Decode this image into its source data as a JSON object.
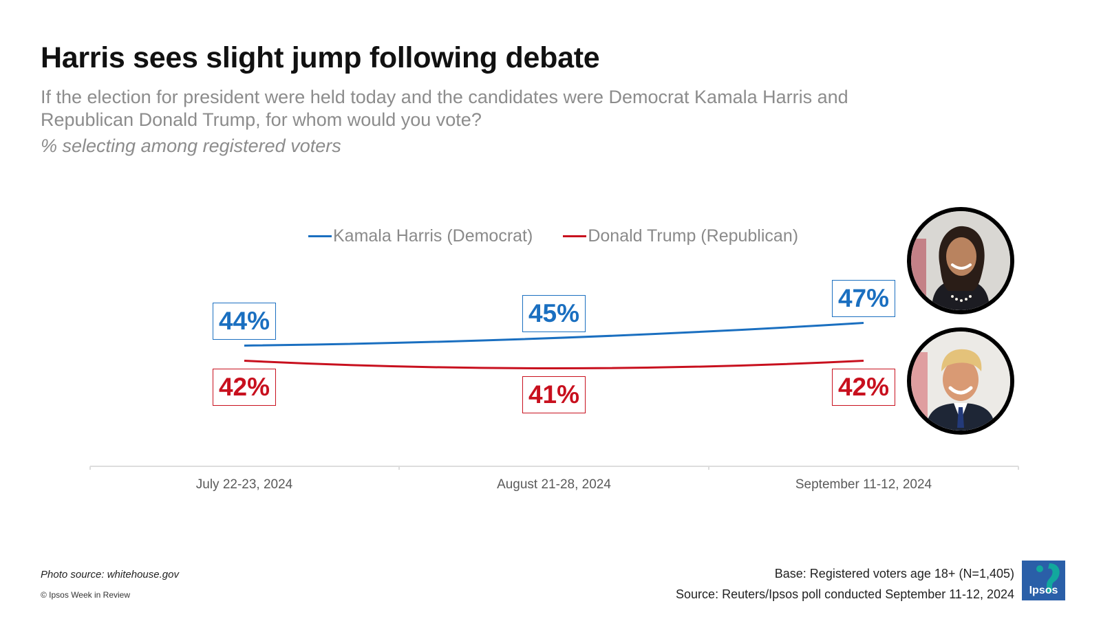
{
  "header": {
    "title": "Harris sees slight jump following debate",
    "question": "If the election for president were held today and the candidates were Democrat Kamala Harris and Republican Donald Trump, for whom would you vote?",
    "subtitle": "% selecting among registered voters"
  },
  "chart_data": {
    "type": "line",
    "categories": [
      "July 22-23, 2024",
      "August 21-28, 2024",
      "September 11-12, 2024"
    ],
    "series": [
      {
        "name": "Kamala Harris (Democrat)",
        "values": [
          44,
          45,
          47
        ],
        "labels": [
          "44%",
          "45%",
          "47%"
        ],
        "color": "#1a6fc0"
      },
      {
        "name": "Donald Trump (Republican)",
        "values": [
          42,
          41,
          42
        ],
        "labels": [
          "42%",
          "41%",
          "42%"
        ],
        "color": "#c8101e"
      }
    ],
    "unit": "%",
    "legend": "top-center",
    "grid": false
  },
  "photos": [
    {
      "name": "kamala-harris-photo",
      "border_color": "#1a6fc0"
    },
    {
      "name": "donald-trump-photo",
      "border_color": "#c8101e"
    }
  ],
  "footer": {
    "photo_source": "Photo source: whitehouse.gov",
    "copyright": "© Ipsos Week in Review",
    "base": "Base: Registered voters age 18+ (N=1,405)",
    "source": "Source: Reuters/Ipsos poll conducted September 11-12, 2024",
    "logo_text": "Ipsos",
    "logo_color": "#2a5fa8",
    "logo_accent_color": "#12a89d"
  }
}
